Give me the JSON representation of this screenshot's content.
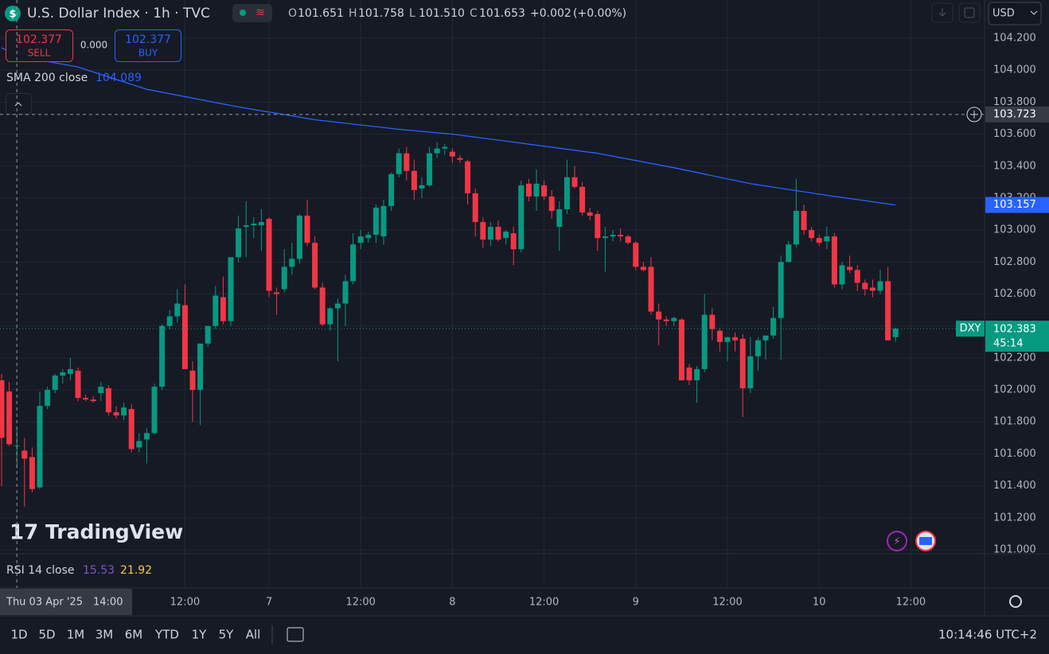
{
  "header": {
    "symbol": "U.S. Dollar Index · 1h · TVC",
    "ohlc_letters": [
      "O",
      "H",
      "L",
      "C"
    ],
    "ohlc_values": [
      "101.651",
      "101.758",
      "101.510",
      "101.653"
    ],
    "change": "+0.002",
    "change_pct": "(+0.00%)",
    "currency": "USD"
  },
  "trade": {
    "sell_price": "102.377",
    "sell": "SELL",
    "spread": "0.000",
    "buy_price": "102.377",
    "buy": "BUY"
  },
  "sma_label": "SMA 200 close",
  "rsi": {
    "label": "RSI 14 close",
    "values": [
      "15.53",
      "21.92"
    ]
  },
  "watermark": "TradingView",
  "crosshair_time": {
    "date": "Thu 03 Apr '25",
    "time": "14:00"
  },
  "toolbar": {
    "ranges": [
      "1D",
      "5D",
      "1M",
      "3M",
      "6M",
      "YTD",
      "1Y",
      "5Y",
      "All"
    ],
    "clock": "10:14:46 UTC+2"
  },
  "chart_data": {
    "type": "candlestick",
    "up_color": "#089981",
    "down_color": "#f23645",
    "categories": [
      null,
      null,
      null,
      null,
      null,
      null,
      null,
      null,
      null,
      null,
      null,
      null,
      null,
      null,
      null,
      null,
      null,
      null,
      null,
      null,
      null,
      null,
      null,
      null,
      "12:00",
      null,
      null,
      null,
      null,
      null,
      null,
      null,
      null,
      null,
      null,
      "7",
      null,
      null,
      null,
      null,
      null,
      null,
      null,
      null,
      null,
      null,
      null,
      "12:00",
      null,
      null,
      null,
      null,
      null,
      null,
      null,
      null,
      null,
      null,
      null,
      "8",
      null,
      null,
      null,
      null,
      null,
      null,
      null,
      null,
      null,
      null,
      null,
      "12:00",
      null,
      null,
      null,
      null,
      null,
      null,
      null,
      null,
      null,
      null,
      null,
      "9",
      null,
      null,
      null,
      null,
      null,
      null,
      null,
      null,
      null,
      null,
      null,
      "12:00",
      null,
      null,
      null,
      null,
      null,
      null,
      null,
      null,
      null,
      null,
      null,
      "10",
      null,
      null,
      null,
      null,
      null,
      null,
      null,
      null,
      null,
      null,
      null,
      "12:00"
    ],
    "ohlc": [
      [
        102.06,
        102.1,
        101.4,
        101.7
      ],
      [
        101.99,
        102.05,
        101.65,
        101.66
      ],
      [
        101.651,
        101.758,
        101.51,
        101.653
      ],
      [
        101.62,
        101.7,
        101.27,
        101.57
      ],
      [
        101.58,
        101.64,
        101.36,
        101.38
      ],
      [
        101.39,
        101.99,
        101.38,
        101.9
      ],
      [
        101.9,
        102.02,
        101.88,
        102.0
      ],
      [
        102.0,
        102.1,
        101.98,
        102.09
      ],
      [
        102.09,
        102.13,
        102.04,
        102.11
      ],
      [
        102.1,
        102.2,
        102.06,
        102.13
      ],
      [
        102.12,
        102.14,
        101.93,
        101.95
      ],
      [
        101.95,
        101.97,
        101.93,
        101.94
      ],
      [
        101.94,
        101.96,
        101.92,
        101.93
      ],
      [
        101.98,
        102.05,
        101.93,
        102.02
      ],
      [
        102.01,
        102.03,
        101.84,
        101.86
      ],
      [
        101.86,
        101.9,
        101.82,
        101.84
      ],
      [
        101.84,
        101.92,
        101.81,
        101.89
      ],
      [
        101.88,
        101.91,
        101.61,
        101.63
      ],
      [
        101.64,
        101.73,
        101.61,
        101.68
      ],
      [
        101.69,
        101.76,
        101.54,
        101.73
      ],
      [
        101.73,
        102.04,
        101.72,
        102.02
      ],
      [
        102.02,
        102.41,
        102.0,
        102.4
      ],
      [
        102.4,
        102.5,
        102.38,
        102.46
      ],
      [
        102.46,
        102.63,
        102.42,
        102.54
      ],
      [
        102.53,
        102.66,
        102.13,
        102.13
      ],
      [
        102.12,
        102.18,
        101.8,
        102.0
      ],
      [
        102.0,
        102.28,
        101.78,
        102.29
      ],
      [
        102.29,
        102.4,
        102.27,
        102.4
      ],
      [
        102.4,
        102.65,
        102.38,
        102.59
      ],
      [
        102.58,
        102.71,
        102.41,
        102.43
      ],
      [
        102.43,
        102.82,
        102.4,
        102.83
      ],
      [
        102.83,
        103.09,
        102.8,
        103.01
      ],
      [
        103.02,
        103.18,
        102.83,
        103.03
      ],
      [
        103.03,
        103.08,
        102.95,
        103.04
      ],
      [
        103.03,
        103.13,
        102.87,
        103.05
      ],
      [
        103.07,
        103.08,
        102.58,
        102.62
      ],
      [
        102.61,
        102.64,
        102.47,
        102.6
      ],
      [
        102.63,
        102.88,
        102.61,
        102.77
      ],
      [
        102.77,
        102.92,
        102.72,
        102.82
      ],
      [
        102.82,
        103.1,
        102.79,
        103.09
      ],
      [
        103.09,
        103.19,
        102.9,
        102.92
      ],
      [
        102.92,
        102.96,
        102.63,
        102.64
      ],
      [
        102.64,
        102.67,
        102.4,
        102.41
      ],
      [
        102.41,
        102.52,
        102.37,
        102.51
      ],
      [
        102.51,
        102.57,
        102.18,
        102.54
      ],
      [
        102.54,
        102.72,
        102.4,
        102.68
      ],
      [
        102.68,
        102.98,
        102.66,
        102.91
      ],
      [
        102.92,
        103.0,
        102.88,
        102.96
      ],
      [
        102.95,
        102.99,
        102.92,
        102.97
      ],
      [
        102.97,
        103.16,
        102.92,
        103.14
      ],
      [
        102.96,
        103.19,
        102.91,
        103.15
      ],
      [
        103.15,
        103.36,
        103.12,
        103.35
      ],
      [
        103.35,
        103.51,
        103.33,
        103.48
      ],
      [
        103.48,
        103.52,
        103.31,
        103.37
      ],
      [
        103.37,
        103.44,
        103.19,
        103.25
      ],
      [
        103.26,
        103.33,
        103.2,
        103.28
      ],
      [
        103.28,
        103.52,
        103.27,
        103.48
      ],
      [
        103.48,
        103.55,
        103.45,
        103.51
      ],
      [
        103.51,
        103.54,
        103.47,
        103.52
      ],
      [
        103.49,
        103.51,
        103.42,
        103.46
      ],
      [
        103.45,
        103.47,
        103.42,
        103.44
      ],
      [
        103.43,
        103.44,
        103.16,
        103.23
      ],
      [
        103.23,
        103.26,
        102.96,
        103.05
      ],
      [
        103.05,
        103.08,
        102.89,
        102.94
      ],
      [
        102.94,
        103.05,
        102.9,
        103.02
      ],
      [
        103.02,
        103.06,
        102.93,
        102.94
      ],
      [
        102.95,
        103.0,
        102.91,
        102.99
      ],
      [
        102.98,
        103.02,
        102.78,
        102.88
      ],
      [
        102.88,
        103.31,
        102.86,
        103.28
      ],
      [
        103.29,
        103.32,
        103.18,
        103.21
      ],
      [
        103.21,
        103.38,
        103.12,
        103.29
      ],
      [
        103.28,
        103.31,
        103.19,
        103.21
      ],
      [
        103.21,
        103.25,
        103.07,
        103.12
      ],
      [
        103.02,
        103.18,
        102.87,
        103.13
      ],
      [
        103.13,
        103.44,
        103.1,
        103.33
      ],
      [
        103.33,
        103.4,
        103.26,
        103.27
      ],
      [
        103.27,
        103.3,
        103.09,
        103.11
      ],
      [
        103.11,
        103.14,
        103.06,
        103.09
      ],
      [
        103.1,
        103.12,
        102.87,
        102.95
      ],
      [
        102.95,
        103.02,
        102.74,
        102.96
      ],
      [
        102.96,
        103.0,
        102.93,
        102.97
      ],
      [
        102.97,
        103.01,
        102.93,
        102.96
      ],
      [
        102.96,
        102.97,
        102.91,
        102.92
      ],
      [
        102.92,
        102.93,
        102.75,
        102.77
      ],
      [
        102.77,
        102.8,
        102.74,
        102.75
      ],
      [
        102.77,
        102.83,
        102.47,
        102.49
      ],
      [
        102.49,
        102.54,
        102.28,
        102.44
      ],
      [
        102.44,
        102.46,
        102.4,
        102.43
      ],
      [
        102.43,
        102.46,
        102.4,
        102.45
      ],
      [
        102.44,
        102.45,
        102.06,
        102.06
      ],
      [
        102.14,
        102.16,
        102.03,
        102.06
      ],
      [
        102.06,
        102.15,
        101.92,
        102.13
      ],
      [
        102.13,
        102.6,
        102.11,
        102.47
      ],
      [
        102.47,
        102.51,
        102.31,
        102.38
      ],
      [
        102.37,
        102.39,
        102.24,
        102.3
      ],
      [
        102.3,
        102.33,
        102.18,
        102.33
      ],
      [
        102.33,
        102.36,
        102.24,
        102.31
      ],
      [
        102.32,
        102.35,
        101.83,
        102.01
      ],
      [
        102.01,
        102.33,
        101.98,
        102.21
      ],
      [
        102.21,
        102.33,
        102.12,
        102.31
      ],
      [
        102.31,
        102.34,
        102.19,
        102.34
      ],
      [
        102.34,
        102.52,
        102.32,
        102.45
      ],
      [
        102.45,
        102.84,
        102.19,
        102.8
      ],
      [
        102.8,
        102.93,
        102.8,
        102.91
      ],
      [
        102.91,
        103.32,
        102.89,
        103.12
      ],
      [
        103.12,
        103.16,
        102.97,
        103.0
      ],
      [
        103.0,
        103.02,
        102.93,
        102.95
      ],
      [
        102.95,
        102.97,
        102.9,
        102.92
      ],
      [
        102.93,
        103.02,
        102.88,
        102.96
      ],
      [
        102.96,
        102.98,
        102.64,
        102.66
      ],
      [
        102.66,
        102.8,
        102.63,
        102.78
      ],
      [
        102.77,
        102.84,
        102.73,
        102.75
      ],
      [
        102.75,
        102.78,
        102.62,
        102.67
      ],
      [
        102.67,
        102.69,
        102.59,
        102.63
      ],
      [
        102.64,
        102.69,
        102.58,
        102.62
      ],
      [
        102.62,
        102.75,
        102.6,
        102.68
      ],
      [
        102.68,
        102.77,
        102.33,
        102.31
      ],
      [
        102.33,
        102.39,
        102.3,
        102.383
      ],
      null,
      null
    ],
    "sma": {
      "color": "#2962ff",
      "x": [
        0,
        2,
        10,
        19,
        31,
        41,
        52,
        59,
        67,
        78,
        88,
        98,
        109,
        117
      ],
      "values": [
        104.14,
        104.089,
        104.02,
        103.88,
        103.77,
        103.69,
        103.63,
        103.6,
        103.55,
        103.48,
        103.39,
        103.29,
        103.21,
        103.157
      ]
    },
    "ylim": [
      100.98,
      104.439
    ],
    "yticks": [
      {
        "value": 101.0,
        "label": "101.000"
      },
      {
        "value": 101.2,
        "label": "101.200"
      },
      {
        "value": 101.4,
        "label": "101.400"
      },
      {
        "value": 101.6,
        "label": "101.600"
      },
      {
        "value": 101.8,
        "label": "101.800"
      },
      {
        "value": 102.0,
        "label": "102.000"
      },
      {
        "value": 102.2,
        "label": "102.200"
      },
      {
        "value": 102.4,
        "label": "102.400"
      },
      {
        "value": 102.6,
        "label": "102.600"
      },
      {
        "value": 102.8,
        "label": "102.800"
      },
      {
        "value": 103.0,
        "label": "103.000"
      },
      {
        "value": 103.2,
        "label": "103.200"
      },
      {
        "value": 103.4,
        "label": "103.400"
      },
      {
        "value": 103.6,
        "label": "103.600"
      },
      {
        "value": 103.8,
        "label": "103.800"
      },
      {
        "value": 104.0,
        "label": "104.000"
      },
      {
        "value": 104.2,
        "label": "104.200"
      }
    ],
    "grid": true,
    "crosshair_index": 2,
    "crosshair_price": 103.723,
    "last_tag": "DXY",
    "countdown": "45:14"
  }
}
